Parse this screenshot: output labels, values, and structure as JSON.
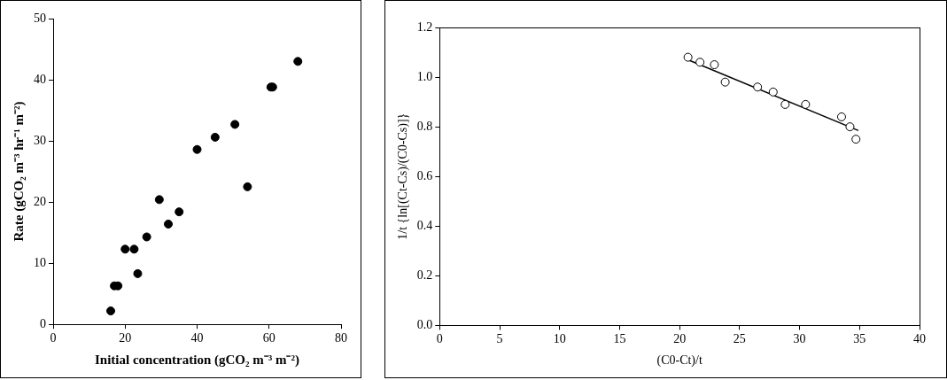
{
  "chart_data": [
    {
      "type": "scatter",
      "x_label": "Initial concentration (gCO₂ m⁻³ m⁻²)",
      "y_label": "Rate (gCO₂ m⁻³ hr⁻¹ m⁻²)",
      "xlim": [
        0,
        80
      ],
      "xticks": [
        0,
        20,
        40,
        60,
        80
      ],
      "ylim": [
        0,
        50
      ],
      "yticks": [
        0,
        10,
        20,
        30,
        40,
        50
      ],
      "grid": false,
      "series": [
        {
          "type": "scatter",
          "marker": "circle",
          "color": "#000000",
          "x": [
            16,
            17,
            18,
            20,
            22.5,
            23.5,
            26,
            29.5,
            32,
            35,
            40,
            45,
            50.5,
            54,
            60.5,
            61,
            68
          ],
          "values": [
            2.2,
            6.3,
            6.3,
            12.3,
            12.3,
            8.3,
            14.3,
            20.4,
            16.4,
            18.4,
            28.6,
            30.6,
            32.7,
            22.5,
            38.8,
            38.8,
            43
          ]
        }
      ]
    },
    {
      "type": "scatter",
      "x_label": "(C0-Ct)/t",
      "y_label": "1/t {ln[(Ct-Cs)/(C0-Cs)]}",
      "xlim": [
        0,
        40
      ],
      "xticks": [
        0,
        5,
        10,
        15,
        20,
        25,
        30,
        35,
        40
      ],
      "ylim": [
        0,
        1.2
      ],
      "yticks": [
        {
          "value": 0,
          "label": "0.0"
        },
        {
          "value": 0.2,
          "label": "0.2"
        },
        {
          "value": 0.4,
          "label": "0.4"
        },
        {
          "value": 0.6,
          "label": "0.6"
        },
        {
          "value": 0.8,
          "label": "0.8"
        },
        {
          "value": 1.0,
          "label": "1.0"
        },
        {
          "value": 1.2,
          "label": "1.2"
        }
      ],
      "grid": false,
      "series": [
        {
          "type": "scatter",
          "marker": "open_circle",
          "color": "#000000",
          "x": [
            20.7,
            21.7,
            22.9,
            23.8,
            26.5,
            27.8,
            28.8,
            30.5,
            33.5,
            34.2,
            34.7
          ],
          "values": [
            1.08,
            1.06,
            1.05,
            0.98,
            0.96,
            0.94,
            0.89,
            0.89,
            0.84,
            0.8,
            0.75
          ]
        },
        {
          "type": "line",
          "line_style": "solid",
          "color": "#000000",
          "x": [
            20.7,
            34.9
          ],
          "values": [
            1.07,
            0.785
          ]
        }
      ]
    }
  ]
}
